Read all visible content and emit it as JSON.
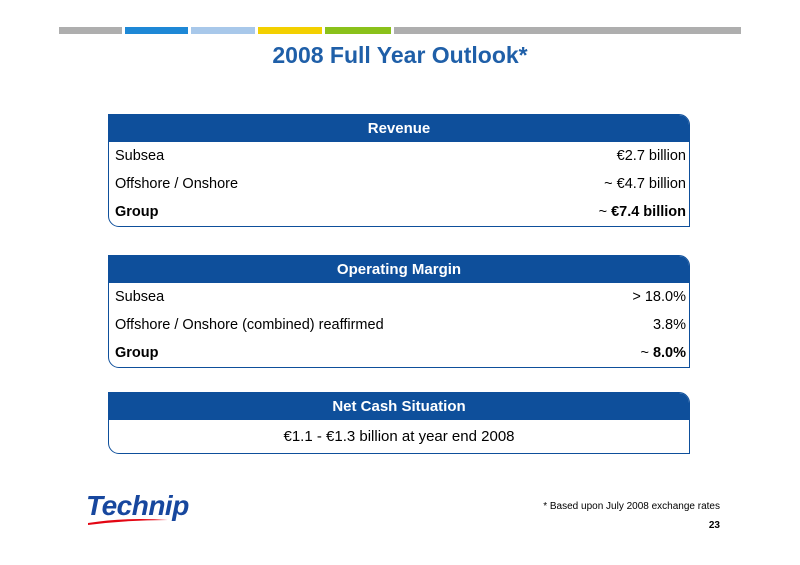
{
  "colors": {
    "title": "#1f5fa8",
    "box_header": "#0e4f9b",
    "bar_gray": "#aeaeae",
    "bar_blue": "#1e88d6",
    "bar_lightblue": "#a8c8ea",
    "bar_yellow": "#f3d000",
    "bar_green": "#8ac11b",
    "logo_blue": "#17479e",
    "logo_red": "#e30613"
  },
  "title": "2008 Full Year Outlook*",
  "revenue": {
    "header": "Revenue",
    "rows": [
      {
        "label": "Subsea",
        "value": "€2.7 billion"
      },
      {
        "label": "Offshore / Onshore",
        "value": "~ €4.7 billion"
      }
    ],
    "group": {
      "label": "Group",
      "prefix": "~ ",
      "value": "€7.4 billion"
    }
  },
  "operating_margin": {
    "header": "Operating Margin",
    "rows": [
      {
        "label": "Subsea",
        "value": "> 18.0%"
      },
      {
        "label": "Offshore / Onshore (combined) reaffirmed",
        "value": "3.8%"
      }
    ],
    "group": {
      "label": "Group",
      "prefix": "~ ",
      "value": "8.0%"
    }
  },
  "net_cash": {
    "header": "Net Cash Situation",
    "value": "€1.1 - €1.3 billion at year end 2008"
  },
  "footer": {
    "logo_text": "Technip",
    "footnote": "* Based upon July 2008 exchange rates",
    "page_number": "23"
  }
}
